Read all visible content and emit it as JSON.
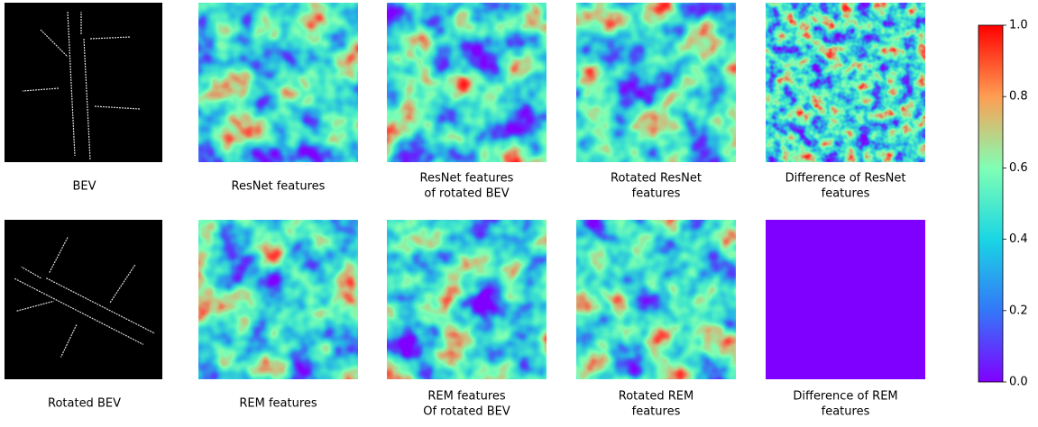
{
  "rows": [
    {
      "panels": [
        {
          "caption": [
            "BEV"
          ]
        },
        {
          "caption": [
            "ResNet features"
          ]
        },
        {
          "caption": [
            "ResNet features",
            "of rotated BEV"
          ]
        },
        {
          "caption": [
            "Rotated ResNet",
            "features"
          ]
        },
        {
          "caption": [
            "Difference of ResNet",
            "features"
          ]
        }
      ]
    },
    {
      "panels": [
        {
          "caption": [
            "Rotated BEV"
          ]
        },
        {
          "caption": [
            "REM features"
          ]
        },
        {
          "caption": [
            "REM features",
            "Of rotated BEV"
          ]
        },
        {
          "caption": [
            "Rotated REM",
            "features"
          ]
        },
        {
          "caption": [
            "Difference of REM",
            "features"
          ]
        }
      ]
    }
  ],
  "colorbar": {
    "lim": [
      0,
      1
    ],
    "ticks": [
      {
        "value": 0,
        "label": "0.0"
      },
      {
        "value": 0.2,
        "label": "0.2"
      },
      {
        "value": 0.4,
        "label": "0.4"
      },
      {
        "value": 0.6,
        "label": "0.6"
      },
      {
        "value": 0.8,
        "label": "0.8"
      },
      {
        "value": 1,
        "label": "1.0"
      }
    ]
  }
}
